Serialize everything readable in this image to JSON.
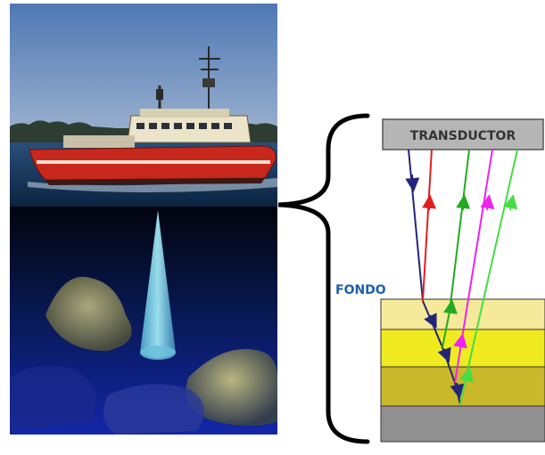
{
  "diagram": {
    "transducer_label": "TRANSDUCTOR",
    "seabed_label": "FONDO"
  },
  "colors": {
    "sky": "#5f86bf",
    "sea": "#0f2a4a",
    "underwater": "#0a1a66",
    "hull": "#c8281c",
    "superstructure": "#ede5cc",
    "sonar_beam": "#8fe0f0",
    "seafloor": "#c8c078",
    "transducer_box": "#b5b5b5",
    "layer_pale": "#f5ea99",
    "layer_yellow": "#f0ea20",
    "layer_olive": "#c8b82a",
    "layer_gray": "#909090",
    "ray_blue": "#24247a",
    "ray_red": "#e02020",
    "ray_green": "#22aa22",
    "ray_magenta": "#ee22ee",
    "ray_lime": "#44dd44",
    "fondo_text": "#1f5fae"
  },
  "rays": [
    {
      "name": "ray-blue",
      "color": "#24247a",
      "direction": "down"
    },
    {
      "name": "ray-red",
      "color": "#e02020",
      "direction": "up"
    },
    {
      "name": "ray-green",
      "color": "#22aa22",
      "direction": "up"
    },
    {
      "name": "ray-magenta",
      "color": "#ee22ee",
      "direction": "up"
    },
    {
      "name": "ray-lime",
      "color": "#44dd44",
      "direction": "up"
    }
  ]
}
